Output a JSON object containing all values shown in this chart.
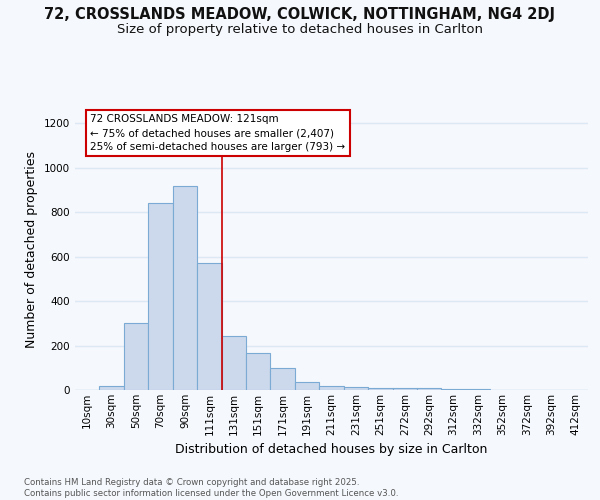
{
  "title_line1": "72, CROSSLANDS MEADOW, COLWICK, NOTTINGHAM, NG4 2DJ",
  "title_line2": "Size of property relative to detached houses in Carlton",
  "xlabel": "Distribution of detached houses by size in Carlton",
  "ylabel": "Number of detached properties",
  "bar_labels": [
    "10sqm",
    "30sqm",
    "50sqm",
    "70sqm",
    "90sqm",
    "111sqm",
    "131sqm",
    "151sqm",
    "171sqm",
    "191sqm",
    "211sqm",
    "231sqm",
    "251sqm",
    "272sqm",
    "292sqm",
    "312sqm",
    "332sqm",
    "352sqm",
    "372sqm",
    "392sqm",
    "412sqm"
  ],
  "bar_values": [
    0,
    20,
    300,
    840,
    920,
    570,
    245,
    165,
    100,
    35,
    20,
    15,
    10,
    8,
    7,
    5,
    3,
    2,
    1,
    1,
    1
  ],
  "bar_color": "#ccd9ec",
  "bar_edge_color": "#7baad4",
  "ylim": [
    0,
    1260
  ],
  "yticks": [
    0,
    200,
    400,
    600,
    800,
    1000,
    1200
  ],
  "red_line_bar_index": 5,
  "red_line_color": "#cc0000",
  "annotation_line1": "72 CROSSLANDS MEADOW: 121sqm",
  "annotation_line2": "← 75% of detached houses are smaller (2,407)",
  "annotation_line3": "25% of semi-detached houses are larger (793) →",
  "annotation_box_color": "#ffffff",
  "annotation_box_edge": "#cc0000",
  "footnote": "Contains HM Land Registry data © Crown copyright and database right 2025.\nContains public sector information licensed under the Open Government Licence v3.0.",
  "background_color": "#f5f8fc",
  "plot_bg_color": "#f5f8fc",
  "grid_color": "#dde8f5",
  "title_fontsize": 10.5,
  "subtitle_fontsize": 9.5,
  "axis_label_fontsize": 9,
  "tick_fontsize": 7.5
}
